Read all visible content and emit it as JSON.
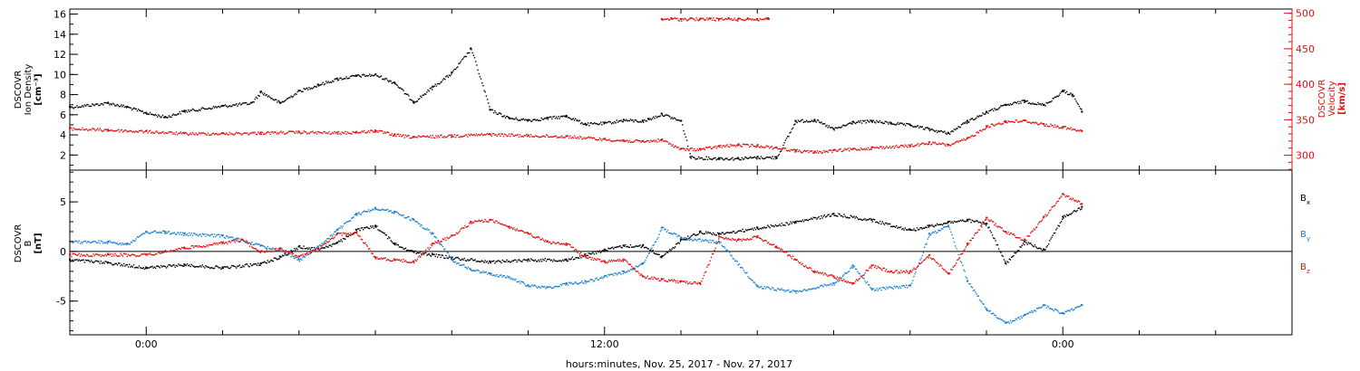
{
  "x_axis": {
    "label": "hours:minutes, Nov. 25, 2017 - Nov. 27, 2017",
    "range_hours": [
      -4,
      60
    ],
    "major_ticks": [
      {
        "hour": 0,
        "label": "0:00"
      },
      {
        "hour": 24,
        "label": "12:00"
      },
      {
        "hour": 48,
        "label": "0:00"
      }
    ],
    "minor_tick_step_hours": 4
  },
  "colors": {
    "black": "#000000",
    "red": "#e01010",
    "blue": "#1a7fd4"
  },
  "chart_data": [
    {
      "type": "scatter",
      "panel": "plasma",
      "left_axis": {
        "label_lines": [
          "DSCOVR",
          "Ion Density",
          "[cm⁻³]"
        ],
        "ylim": [
          0.5,
          16.5
        ],
        "ticks": [
          2,
          4,
          6,
          8,
          10,
          12,
          14,
          16
        ]
      },
      "right_axis": {
        "label_lines": [
          "DSCOVR",
          "Velocity",
          "[km/s]"
        ],
        "ylim": [
          279,
          506
        ],
        "ticks": [
          300,
          350,
          400,
          450,
          500
        ],
        "color": "#e01010"
      },
      "series": [
        {
          "axis": "left",
          "color": "#000000",
          "x": [
            -4,
            -2,
            -1,
            0,
            1,
            2,
            4,
            5.5,
            6,
            7,
            8,
            9,
            10,
            11,
            12,
            13,
            14,
            15,
            16,
            17,
            18,
            19,
            20,
            21,
            22,
            23,
            24,
            25,
            26,
            26.3,
            27,
            28,
            28.5,
            30,
            31,
            32,
            33,
            34,
            35,
            36,
            37,
            38,
            39,
            40,
            41,
            42,
            43,
            44,
            45,
            46,
            47,
            48,
            48.5,
            49
          ],
          "y": [
            6.8,
            7.2,
            6.8,
            6.2,
            5.8,
            6.4,
            6.9,
            7.2,
            8.3,
            7.2,
            8.4,
            9.0,
            9.6,
            9.9,
            10.0,
            9.2,
            7.3,
            8.8,
            10.2,
            12.6,
            6.5,
            5.7,
            5.5,
            5.7,
            5.9,
            5.1,
            5.2,
            5.5,
            5.4,
            5.6,
            6.1,
            5.4,
            1.8,
            1.7,
            1.7,
            1.8,
            1.8,
            5.4,
            5.5,
            4.6,
            5.3,
            5.4,
            5.2,
            5.0,
            4.6,
            4.2,
            5.4,
            6.3,
            7.0,
            7.4,
            7.0,
            8.4,
            8.0,
            6.3
          ]
        },
        {
          "axis": "right",
          "color": "#e01010",
          "x": [
            -4,
            -2,
            0,
            2,
            4,
            6,
            8,
            10,
            11,
            12,
            13,
            14,
            16,
            18,
            20,
            22,
            24,
            25,
            26,
            27,
            28,
            29,
            30,
            31,
            32,
            33,
            34,
            35,
            36,
            37,
            38,
            40,
            41,
            42,
            43,
            44,
            45,
            46,
            47,
            48,
            49
          ],
          "y": [
            338,
            336,
            334,
            331,
            331,
            332,
            333,
            332,
            333,
            335,
            329,
            326,
            328,
            330,
            328,
            327,
            323,
            321,
            320,
            322,
            309,
            309,
            313,
            315,
            314,
            311,
            307,
            305,
            307,
            309,
            311,
            314,
            318,
            315,
            324,
            341,
            348,
            349,
            344,
            340,
            334
          ]
        },
        {
          "axis": "right",
          "color": "#e01010",
          "note": "",
          "x": [
            27.0,
            27.5,
            28.0,
            28.5,
            29.0,
            29.5,
            30.0,
            30.5,
            31.0,
            31.5,
            32.0,
            32.5,
            32.6
          ],
          "y": [
            492,
            493,
            492,
            493,
            492,
            493,
            492,
            493,
            492,
            493,
            492,
            493,
            492
          ]
        }
      ]
    },
    {
      "type": "scatter",
      "panel": "magnetic_field",
      "left_axis": {
        "label_lines": [
          "DSCOVR",
          "B",
          "[nT]"
        ],
        "ylim": [
          -8.4,
          8.2
        ],
        "ticks": [
          -5,
          0,
          5
        ]
      },
      "legend": {
        "placement": "right",
        "items": [
          {
            "label": "Bx",
            "base": "B",
            "sub": "x",
            "color": "#000000"
          },
          {
            "label": "By",
            "base": "B",
            "sub": "y",
            "color": "#1a7fd4"
          },
          {
            "label": "Bz",
            "base": "B",
            "sub": "z",
            "color": "#e01010"
          }
        ]
      },
      "series": [
        {
          "name": "Bx",
          "color": "#000000",
          "x": [
            -4,
            -2,
            0,
            2,
            4,
            6,
            7,
            8,
            9,
            10,
            11,
            12,
            13,
            14,
            15,
            16,
            18,
            20,
            22,
            24,
            25,
            26,
            27,
            28,
            29,
            30,
            32,
            34,
            36,
            38,
            40,
            41,
            42,
            43,
            44,
            45,
            46,
            47,
            48,
            49
          ],
          "y": [
            -0.8,
            -1.1,
            -1.6,
            -1.3,
            -1.6,
            -1.2,
            -0.5,
            0.5,
            0.3,
            0.9,
            2.2,
            2.6,
            0.8,
            0.0,
            -0.3,
            -0.6,
            -1.0,
            -0.8,
            -0.8,
            0.2,
            0.6,
            0.6,
            -0.5,
            1.2,
            2.0,
            1.8,
            2.4,
            3.0,
            3.8,
            3.2,
            2.2,
            2.6,
            3.0,
            3.2,
            2.8,
            -1.2,
            1.0,
            0.2,
            3.5,
            4.5
          ]
        },
        {
          "name": "By",
          "color": "#1a7fd4",
          "x": [
            -4,
            -2,
            -1,
            0,
            1,
            2,
            4,
            5,
            6,
            7,
            8,
            9,
            10,
            11,
            12,
            13,
            14,
            15,
            16,
            17,
            18,
            19,
            20,
            21,
            22,
            23,
            24,
            25,
            26,
            27,
            28,
            30,
            32,
            34,
            36,
            37,
            38,
            40,
            41,
            42,
            43,
            44,
            45,
            46,
            47,
            48,
            49
          ],
          "y": [
            1.0,
            1.0,
            0.8,
            2.0,
            2.0,
            1.8,
            1.6,
            1.2,
            0.6,
            0.2,
            -0.8,
            0.5,
            2.2,
            3.8,
            4.4,
            4.0,
            3.2,
            1.8,
            -0.8,
            -1.8,
            -2.2,
            -2.6,
            -3.4,
            -3.6,
            -3.2,
            -3.0,
            -2.5,
            -2.0,
            -1.2,
            2.4,
            1.4,
            1.0,
            -3.5,
            -4.0,
            -3.2,
            -1.4,
            -3.8,
            -3.4,
            1.8,
            2.6,
            -3.0,
            -5.8,
            -7.2,
            -6.4,
            -5.4,
            -6.2,
            -5.4
          ]
        },
        {
          "name": "Bz",
          "color": "#e01010",
          "x": [
            -4,
            -2,
            0,
            2,
            4,
            5,
            6,
            7,
            8,
            9,
            10,
            11,
            12,
            13,
            14,
            15,
            16,
            17,
            18,
            19,
            20,
            21,
            22,
            23,
            24,
            25,
            26,
            27,
            28,
            29,
            30,
            31,
            32,
            33,
            34,
            35,
            36,
            37,
            38,
            39,
            40,
            41,
            42,
            43,
            44,
            45,
            46,
            47,
            48,
            49
          ],
          "y": [
            -0.3,
            -0.3,
            -0.3,
            0.4,
            0.9,
            1.2,
            0.0,
            0.3,
            -0.5,
            0.3,
            1.8,
            1.9,
            -0.6,
            -0.8,
            -1.0,
            0.8,
            1.6,
            3.0,
            3.2,
            2.5,
            1.8,
            1.0,
            0.8,
            -0.5,
            -1.0,
            -0.8,
            -2.5,
            -2.8,
            -3.0,
            -3.2,
            1.5,
            1.2,
            1.5,
            0.5,
            -0.8,
            -2.0,
            -2.5,
            -3.2,
            -1.4,
            -2.0,
            -2.0,
            -0.4,
            -2.2,
            0.8,
            3.4,
            2.0,
            1.2,
            3.5,
            5.8,
            4.8
          ]
        }
      ]
    }
  ]
}
